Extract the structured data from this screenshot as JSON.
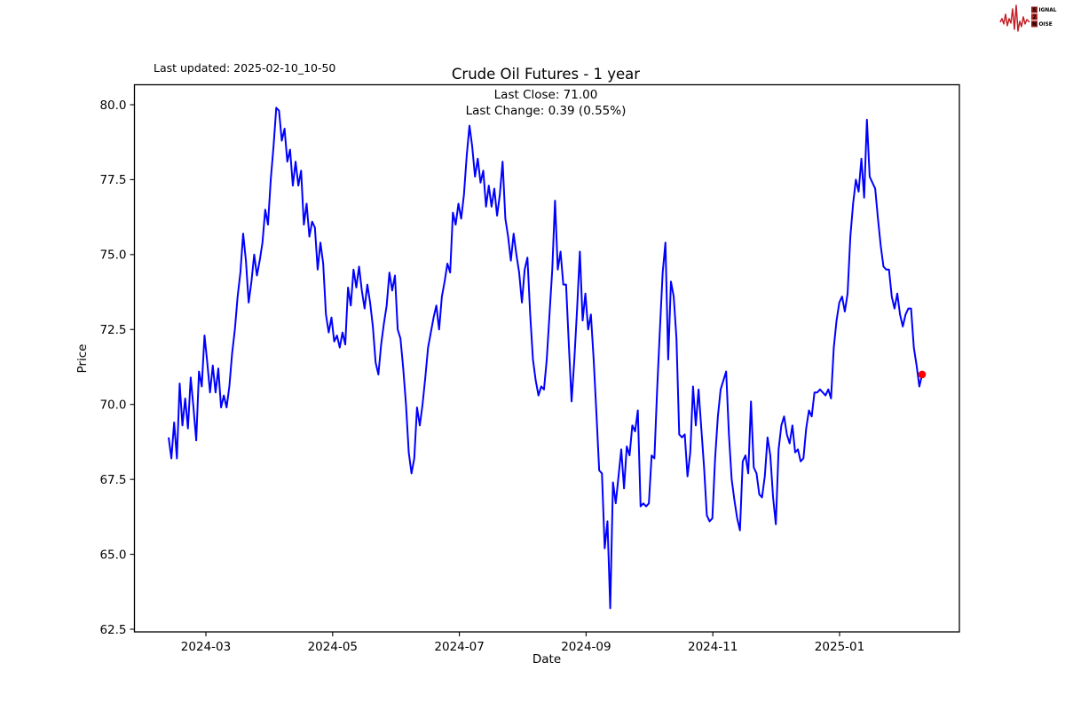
{
  "header": {
    "last_updated": "Last updated: 2025-02-10_10-50",
    "title": "Crude Oil Futures - 1 year",
    "annotation_line1": "Last Close: 71.00",
    "annotation_line2": "Last Change: 0.39 (0.55%)"
  },
  "logo": {
    "s": "S",
    "ignal": "IGNAL",
    "two": "2",
    "n": "N",
    "oise": "OISE"
  },
  "axes": {
    "xlabel": "Date",
    "ylabel": "Price"
  },
  "chart_data": {
    "type": "line",
    "title": "Crude Oil Futures - 1 year",
    "xlabel": "Date",
    "ylabel": "Price",
    "legend": "none",
    "grid": false,
    "x_tick_labels": [
      "2024-03",
      "2024-05",
      "2024-07",
      "2024-09",
      "2024-11",
      "2025-01"
    ],
    "y_ticks": [
      80.0,
      77.5,
      75.0,
      72.5,
      70.0,
      67.5,
      65.0,
      62.5
    ],
    "ylim": [
      62.4,
      80.7
    ],
    "x_start_date": "2024-02-12",
    "x_end_date": "2025-02-10",
    "line_color": "#0000ff",
    "last_point_marker_color": "#ff0000",
    "last_close": 71.0,
    "last_change": 0.39,
    "last_change_pct": "0.55%",
    "series_name": "Crude Oil Futures price",
    "values": [
      68.9,
      68.2,
      69.4,
      68.2,
      70.7,
      69.3,
      70.2,
      69.2,
      70.9,
      69.9,
      68.8,
      71.1,
      70.6,
      72.3,
      71.4,
      70.4,
      71.3,
      70.4,
      71.2,
      69.9,
      70.3,
      69.9,
      70.6,
      71.7,
      72.5,
      73.6,
      74.4,
      75.7,
      74.8,
      73.4,
      74.1,
      75.0,
      74.3,
      74.8,
      75.4,
      76.5,
      76.0,
      77.5,
      78.6,
      79.9,
      79.8,
      78.8,
      79.2,
      78.1,
      78.5,
      77.3,
      78.1,
      77.3,
      77.8,
      76.0,
      76.7,
      75.6,
      76.1,
      75.9,
      74.5,
      75.4,
      74.7,
      73.0,
      72.4,
      72.9,
      72.1,
      72.3,
      71.9,
      72.4,
      72.0,
      73.9,
      73.3,
      74.5,
      73.9,
      74.6,
      73.8,
      73.2,
      74.0,
      73.4,
      72.6,
      71.4,
      71.0,
      72.0,
      72.7,
      73.3,
      74.4,
      73.8,
      74.3,
      72.5,
      72.2,
      71.2,
      70.0,
      68.4,
      67.7,
      68.2,
      69.9,
      69.3,
      70.0,
      70.9,
      71.9,
      72.4,
      72.9,
      73.3,
      72.5,
      73.6,
      74.1,
      74.7,
      74.4,
      76.4,
      76.0,
      76.7,
      76.2,
      77.0,
      78.3,
      79.3,
      78.6,
      77.6,
      78.2,
      77.4,
      77.8,
      76.6,
      77.3,
      76.6,
      77.2,
      76.3,
      77.0,
      78.1,
      76.2,
      75.6,
      74.8,
      75.7,
      75.0,
      74.4,
      73.4,
      74.5,
      74.9,
      73.0,
      71.5,
      70.8,
      70.3,
      70.6,
      70.5,
      71.5,
      73.0,
      74.5,
      76.8,
      74.5,
      75.1,
      74.0,
      74.0,
      72.0,
      70.1,
      71.5,
      73.2,
      75.1,
      72.8,
      73.7,
      72.5,
      73.0,
      71.5,
      69.7,
      67.8,
      67.7,
      65.2,
      66.1,
      63.2,
      67.4,
      66.7,
      67.6,
      68.5,
      67.2,
      68.6,
      68.3,
      69.3,
      69.1,
      69.8,
      66.6,
      66.7,
      66.6,
      66.7,
      68.3,
      68.2,
      70.5,
      72.5,
      74.4,
      75.4,
      71.5,
      74.1,
      73.6,
      72.2,
      69.0,
      68.9,
      69.0,
      67.6,
      68.4,
      70.6,
      69.3,
      70.5,
      69.2,
      67.9,
      66.3,
      66.1,
      66.2,
      68.2,
      69.6,
      70.5,
      70.8,
      71.1,
      69.0,
      67.5,
      66.8,
      66.2,
      65.8,
      68.1,
      68.3,
      67.7,
      70.1,
      67.9,
      67.7,
      67.0,
      66.9,
      67.6,
      68.9,
      68.3,
      66.9,
      66.0,
      68.5,
      69.3,
      69.6,
      69.0,
      68.7,
      69.3,
      68.4,
      68.5,
      68.1,
      68.2,
      69.2,
      69.8,
      69.6,
      70.4,
      70.4,
      70.5,
      70.4,
      70.3,
      70.5,
      70.2,
      71.9,
      72.8,
      73.4,
      73.6,
      73.1,
      73.7,
      75.6,
      76.7,
      77.5,
      77.1,
      78.2,
      76.9,
      79.5,
      77.6,
      77.4,
      77.2,
      76.2,
      75.3,
      74.6,
      74.5,
      74.5,
      73.6,
      73.2,
      73.7,
      73.0,
      72.6,
      73.0,
      73.2,
      73.2,
      71.9,
      71.3,
      70.6,
      71.0
    ]
  }
}
